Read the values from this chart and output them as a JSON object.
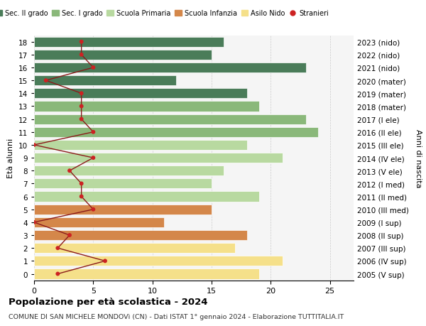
{
  "ages": [
    18,
    17,
    16,
    15,
    14,
    13,
    12,
    11,
    10,
    9,
    8,
    7,
    6,
    5,
    4,
    3,
    2,
    1,
    0
  ],
  "right_labels": [
    "2005 (V sup)",
    "2006 (IV sup)",
    "2007 (III sup)",
    "2008 (II sup)",
    "2009 (I sup)",
    "2010 (III med)",
    "2011 (II med)",
    "2012 (I med)",
    "2013 (V ele)",
    "2014 (IV ele)",
    "2015 (III ele)",
    "2016 (II ele)",
    "2017 (I ele)",
    "2018 (mater)",
    "2019 (mater)",
    "2020 (mater)",
    "2021 (nido)",
    "2022 (nido)",
    "2023 (nido)"
  ],
  "bar_values": [
    16,
    15,
    23,
    12,
    18,
    19,
    23,
    24,
    18,
    21,
    16,
    15,
    19,
    15,
    11,
    18,
    17,
    21,
    19
  ],
  "bar_colors": [
    "#4a7c59",
    "#4a7c59",
    "#4a7c59",
    "#4a7c59",
    "#4a7c59",
    "#8ab87a",
    "#8ab87a",
    "#8ab87a",
    "#b8d9a0",
    "#b8d9a0",
    "#b8d9a0",
    "#b8d9a0",
    "#b8d9a0",
    "#d4874a",
    "#d4874a",
    "#d4874a",
    "#f5e08a",
    "#f5e08a",
    "#f5e08a"
  ],
  "stranieri_values": [
    4,
    4,
    5,
    1,
    4,
    4,
    4,
    5,
    0,
    5,
    3,
    4,
    4,
    5,
    0,
    3,
    2,
    6,
    2
  ],
  "legend_labels": [
    "Sec. II grado",
    "Sec. I grado",
    "Scuola Primaria",
    "Scuola Infanzia",
    "Asilo Nido",
    "Stranieri"
  ],
  "legend_colors": [
    "#4a7c59",
    "#8ab87a",
    "#b8d9a0",
    "#d4874a",
    "#f5e08a",
    "#cc2222"
  ],
  "title": "Popolazione per età scolastica - 2024",
  "subtitle": "COMUNE DI SAN MICHELE MONDOVì (CN) - Dati ISTAT 1° gennaio 2024 - Elaborazione TUTTITALIA.IT",
  "ylabel_left": "Età alunni",
  "ylabel_right": "Anni di nascita",
  "xlim": [
    0,
    27
  ],
  "bg_color": "#ffffff",
  "plot_bg_color": "#f5f5f5"
}
